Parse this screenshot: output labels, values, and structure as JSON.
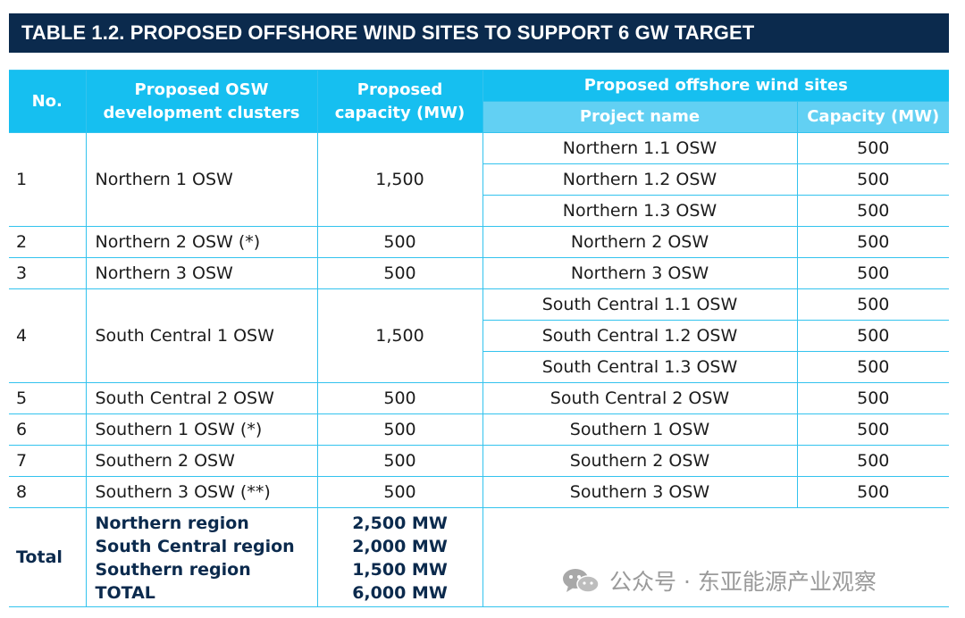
{
  "title": "TABLE 1.2. PROPOSED OFFSHORE WIND SITES TO SUPPORT 6 GW TARGET",
  "headers": {
    "no": "No.",
    "clusters": "Proposed OSW development clusters",
    "capacity": "Proposed capacity (MW)",
    "sites": "Proposed offshore wind sites",
    "project_name": "Project name",
    "site_capacity": "Capacity (MW)"
  },
  "rows": [
    {
      "no": "1",
      "cluster": "Northern 1 OSW",
      "capacity": "1,500",
      "sites": [
        {
          "name": "Northern 1.1 OSW",
          "cap": "500"
        },
        {
          "name": "Northern 1.2 OSW",
          "cap": "500"
        },
        {
          "name": "Northern 1.3 OSW",
          "cap": "500"
        }
      ]
    },
    {
      "no": "2",
      "cluster": "Northern 2 OSW (*)",
      "capacity": "500",
      "sites": [
        {
          "name": "Northern 2 OSW",
          "cap": "500"
        }
      ]
    },
    {
      "no": "3",
      "cluster": "Northern 3 OSW",
      "capacity": "500",
      "sites": [
        {
          "name": "Northern 3 OSW",
          "cap": "500"
        }
      ]
    },
    {
      "no": "4",
      "cluster": "South Central 1 OSW",
      "capacity": "1,500",
      "sites": [
        {
          "name": "South Central 1.1 OSW",
          "cap": "500"
        },
        {
          "name": "South Central 1.2 OSW",
          "cap": "500"
        },
        {
          "name": "South Central 1.3 OSW",
          "cap": "500"
        }
      ]
    },
    {
      "no": "5",
      "cluster": "South Central 2 OSW",
      "capacity": "500",
      "sites": [
        {
          "name": "South Central 2 OSW",
          "cap": "500"
        }
      ]
    },
    {
      "no": "6",
      "cluster": "Southern 1 OSW (*)",
      "capacity": "500",
      "sites": [
        {
          "name": "Southern 1 OSW",
          "cap": "500"
        }
      ]
    },
    {
      "no": "7",
      "cluster": "Southern 2 OSW",
      "capacity": "500",
      "sites": [
        {
          "name": "Southern 2 OSW",
          "cap": "500"
        }
      ]
    },
    {
      "no": "8",
      "cluster": "Southern 3 OSW (**)",
      "capacity": "500",
      "sites": [
        {
          "name": "Southern 3 OSW",
          "cap": "500"
        }
      ]
    }
  ],
  "total": {
    "label": "Total",
    "regions": [
      "Northern region",
      "South Central region",
      "Southern region",
      "TOTAL"
    ],
    "values": [
      "2,500 MW",
      "2,000 MW",
      "1,500 MW",
      "6,000 MW"
    ]
  },
  "watermark": {
    "icon": "wechat-icon",
    "text": "公众号 · 东亚能源产业观察"
  },
  "colors": {
    "title_bg": "#0b2a4d",
    "header_bg": "#16bff0",
    "subheader_bg": "#62d0f3",
    "border": "#33c3ee"
  }
}
